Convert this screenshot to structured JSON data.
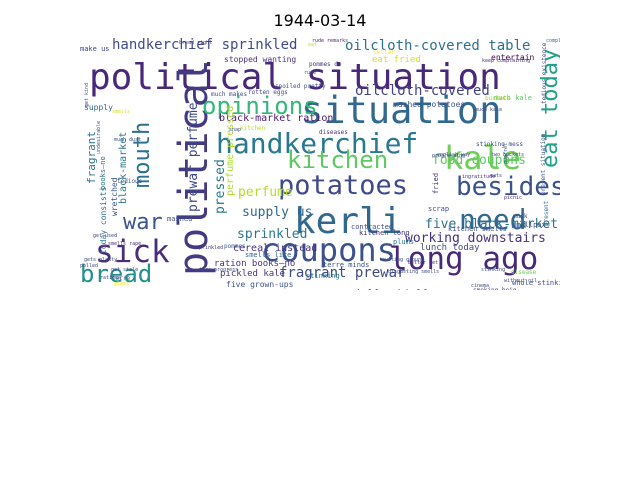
{
  "title": "1944-03-14",
  "words": [
    {
      "text": "political situation",
      "color": "#482878"
    },
    {
      "text": "situation",
      "color": "#31688e"
    },
    {
      "text": "political",
      "color": "#443a83"
    },
    {
      "text": "handkerchief",
      "color": "#2a788e"
    },
    {
      "text": "kale",
      "color": "#6ece58"
    },
    {
      "text": "potatoes",
      "color": "#3e4a89"
    },
    {
      "text": "kerli",
      "color": "#31688e"
    },
    {
      "text": "coupons",
      "color": "#3b528b"
    },
    {
      "text": "long ago",
      "color": "#482878"
    },
    {
      "text": "sick",
      "color": "#472d7b"
    },
    {
      "text": "kitchen",
      "color": "#5ec962"
    },
    {
      "text": "besides",
      "color": "#3b528b"
    },
    {
      "text": "opinions",
      "color": "#35b779"
    },
    {
      "text": "need",
      "color": "#31688e"
    },
    {
      "text": "bread",
      "color": "#21918c"
    },
    {
      "text": "mouth",
      "color": "#2c728e"
    },
    {
      "text": "eat today",
      "color": "#1fa187"
    },
    {
      "text": "war",
      "color": "#3b528b"
    },
    {
      "text": "handkerchief sprinkled",
      "color": "#3e4a89"
    },
    {
      "text": "oilcloth-covered table",
      "color": "#2c728e"
    },
    {
      "text": "oilcloth-covered",
      "color": "#414487"
    },
    {
      "text": "fragrant prewar",
      "color": "#3e4a89"
    },
    {
      "text": "five black-market",
      "color": "#2c728e"
    },
    {
      "text": "working downstairs",
      "color": "#46337f"
    },
    {
      "text": "food coupons",
      "color": "#5ec962"
    },
    {
      "text": "supply us",
      "color": "#31688e"
    },
    {
      "text": "sprinkled",
      "color": "#2a788e"
    },
    {
      "text": "perfume",
      "color": "#b5de2b"
    },
    {
      "text": "prewar perfume",
      "color": "#3e4a89"
    },
    {
      "text": "pressed",
      "color": "#2a788e"
    },
    {
      "text": "fragrant",
      "color": "#2c728e"
    },
    {
      "text": "cereal instead",
      "color": "#46337f"
    },
    {
      "text": "black-market ration",
      "color": "#48186a"
    },
    {
      "text": "ration books—no",
      "color": "#46337f"
    },
    {
      "text": "lunch today",
      "color": "#3e4a89"
    },
    {
      "text": "half-and-half",
      "color": "#46337f"
    },
    {
      "text": "fried potatoes",
      "color": "#3b528b"
    },
    {
      "text": "eat fried",
      "color": "#d8e219"
    },
    {
      "text": "pickled kale",
      "color": "#46337f"
    },
    {
      "text": "black-market",
      "color": "#2a788e"
    },
    {
      "text": "perfume pressed",
      "color": "#addc30"
    },
    {
      "text": "fourth year",
      "color": "#3e4a89"
    },
    {
      "text": "five grown-ups",
      "color": "#3b528b"
    },
    {
      "text": "books—no coupons",
      "color": "#5ec962"
    },
    {
      "text": "stopped wanting",
      "color": "#46337f"
    },
    {
      "text": "mashed potatoes",
      "color": "#3b528b"
    },
    {
      "text": "entertain",
      "color": "#440154"
    },
    {
      "text": "today consists",
      "color": "#2a788e"
    },
    {
      "text": "books—no",
      "color": "#2c728e"
    },
    {
      "text": "wretched",
      "color": "#3b528b"
    },
    {
      "text": "supply",
      "color": "#31688e"
    },
    {
      "text": "make us",
      "color": "#414487"
    },
    {
      "text": "scrap",
      "color": "#3e4a89"
    },
    {
      "text": "smallpox",
      "color": "#3b528b"
    },
    {
      "text": "muck",
      "color": "#3e4a89"
    },
    {
      "text": "disease",
      "color": "#6ece58"
    },
    {
      "text": "whole stinking",
      "color": "#3e4a89"
    },
    {
      "text": "stinking",
      "color": "#2a788e"
    },
    {
      "text": "mashed",
      "color": "#3b528b"
    },
    {
      "text": "contracted",
      "color": "#3e4a89"
    },
    {
      "text": "fried",
      "color": "#46337f"
    },
    {
      "text": "kitchen smells",
      "color": "#3e4a89"
    },
    {
      "text": "terre minds",
      "color": "#3b528b"
    },
    {
      "text": "plums",
      "color": "#2a788e"
    },
    {
      "text": "smells like",
      "color": "#31688e"
    },
    {
      "text": "pommes",
      "color": "#3b528b"
    },
    {
      "text": "kitchen long",
      "color": "#46337f"
    },
    {
      "text": "much kale",
      "color": "#5ec962"
    },
    {
      "text": "diseases",
      "color": "#46337f"
    },
    {
      "text": "tedious",
      "color": "#3b528b"
    },
    {
      "text": "rude remarks",
      "color": "#482878"
    },
    {
      "text": "complaining",
      "color": "#2c728e"
    },
    {
      "text": "two buckets",
      "color": "#3e4a89"
    },
    {
      "text": "picnic",
      "color": "#46337f"
    },
    {
      "text": "stinking mess",
      "color": "#3e4a89"
    },
    {
      "text": "present situation",
      "color": "#3b528b"
    },
    {
      "text": "tedious existence",
      "color": "#414487"
    },
    {
      "text": "much kale",
      "color": "#3e4a89"
    },
    {
      "text": "terre",
      "color": "#3b528b"
    },
    {
      "text": "rotten eggs",
      "color": "#3e4a89"
    },
    {
      "text": "much makes",
      "color": "#3e4a89"
    },
    {
      "text": "smoking beig",
      "color": "#46337f"
    },
    {
      "text": "present",
      "color": "#2c728e"
    },
    {
      "text": "cutting ground",
      "color": "#3b528b"
    },
    {
      "text": "progressing",
      "color": "#3e4a89"
    },
    {
      "text": "quarrel",
      "color": "#3b528b"
    },
    {
      "text": "better yet",
      "color": "#46337f"
    },
    {
      "text": "disgusting smells",
      "color": "#3e4a89"
    },
    {
      "text": "snap",
      "color": "#3e4a89"
    },
    {
      "text": "pommes de",
      "color": "#46337f"
    },
    {
      "text": "gets plenty",
      "color": "#3e4a89"
    },
    {
      "text": "bread right",
      "color": "#46337f"
    },
    {
      "text": "polled",
      "color": "#3e4a89"
    },
    {
      "text": "spoiled pretty",
      "color": "#3b528b"
    },
    {
      "text": "rude",
      "color": "#3e4a89"
    },
    {
      "text": "without oil",
      "color": "#3b528b"
    },
    {
      "text": "english way",
      "color": "#3e4a89"
    },
    {
      "text": "keep complaining",
      "color": "#46337f"
    },
    {
      "text": "get kind",
      "color": "#3e4a89"
    },
    {
      "text": "kitchen",
      "color": "#b5de2b"
    },
    {
      "text": "cellar",
      "color": "#fde725"
    },
    {
      "text": "buckets",
      "color": "#a0da39"
    },
    {
      "text": "eat",
      "color": "#c2df23"
    },
    {
      "text": "smells",
      "color": "#d8e219"
    },
    {
      "text": "glass",
      "color": "#e5e419"
    },
    {
      "text": "rations",
      "color": "#3e4a89"
    },
    {
      "text": "much dust",
      "color": "#3b528b"
    },
    {
      "text": "smells rape",
      "color": "#46337f"
    },
    {
      "text": "tire progress",
      "color": "#3e4a89"
    },
    {
      "text": "undesirable",
      "color": "#3b528b"
    },
    {
      "text": "sprinkled",
      "color": "#46337f"
    },
    {
      "text": "get stale",
      "color": "#3e4a89"
    },
    {
      "text": "ingratitude",
      "color": "#46337f"
    },
    {
      "text": "stinking",
      "color": "#3b528b"
    },
    {
      "text": "cinema",
      "color": "#3e4a89"
    },
    {
      "text": "eats",
      "color": "#46337f"
    },
    {
      "text": "get used",
      "color": "#3e4a89"
    }
  ]
}
